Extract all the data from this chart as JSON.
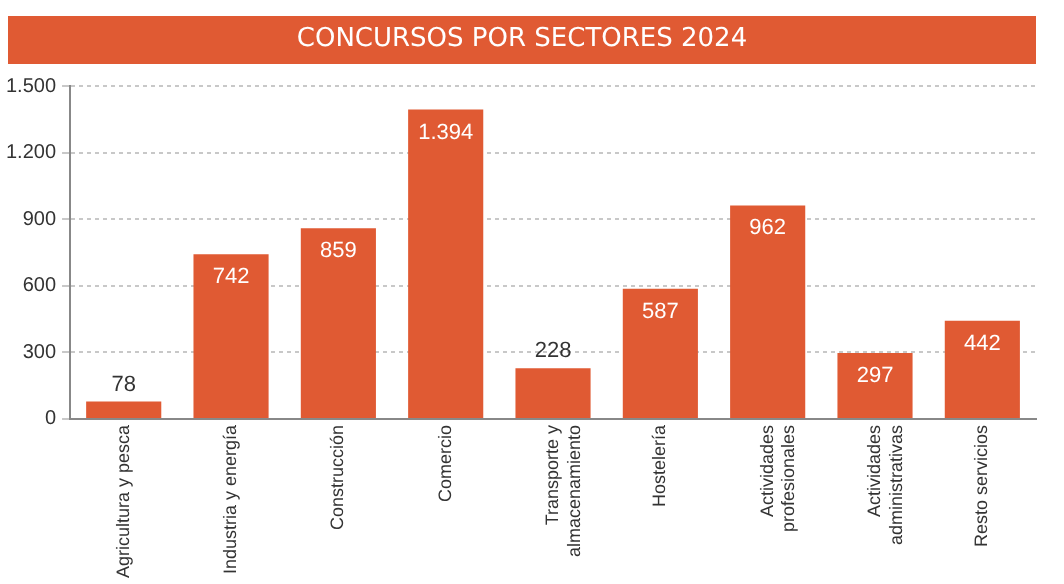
{
  "chart_data": {
    "type": "bar",
    "title": "CONCURSOS POR SECTORES 2024",
    "categories": [
      "Agricultura y pesca",
      "Industria y energía",
      "Construcción",
      "Comercio",
      "Transporte y\nalmacenamiento",
      "Hostelería",
      "Actividades\nprofesionales",
      "Actividades\nadministrativas",
      "Resto servicios"
    ],
    "values": [
      78,
      742,
      859,
      1394,
      228,
      587,
      962,
      297,
      442
    ],
    "value_labels": [
      "78",
      "742",
      "859",
      "1.394",
      "228",
      "587",
      "962",
      "297",
      "442"
    ],
    "color": "#e05a33",
    "ylim": [
      0,
      1500
    ],
    "yticks": [
      {
        "value": 0,
        "label": "0"
      },
      {
        "value": 300,
        "label": "300"
      },
      {
        "value": 600,
        "label": "600"
      },
      {
        "value": 900,
        "label": "900"
      },
      {
        "value": 1200,
        "label": "1.200"
      },
      {
        "value": 1500,
        "label": "1.500"
      }
    ],
    "grid": "y",
    "legend": false
  }
}
